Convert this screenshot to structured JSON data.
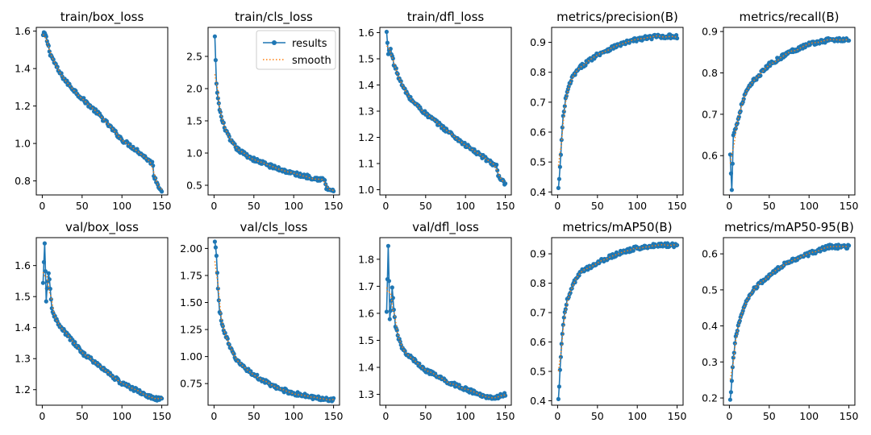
{
  "figure": {
    "legend": {
      "results_label": "results",
      "smooth_label": "smooth",
      "placement": "top-right of train/cls_loss"
    },
    "colors": {
      "results": "#1f77b4",
      "smooth": "#ff7f0e"
    }
  },
  "chart_data": [
    {
      "type": "line",
      "title": "train/box_loss",
      "x_range": [
        0,
        150
      ],
      "xticks": [
        0,
        50,
        100,
        150
      ],
      "ylim": [
        0.725,
        1.62
      ],
      "yticks": [
        0.8,
        1.0,
        1.2,
        1.4,
        1.6
      ],
      "ytick_labels": [
        "0.8",
        "1.0",
        "1.2",
        "1.4",
        "1.6"
      ],
      "series": [
        {
          "name": "results",
          "points": [
            [
              0,
              1.57
            ],
            [
              3,
              1.59
            ],
            [
              6,
              1.55
            ],
            [
              10,
              1.48
            ],
            [
              20,
              1.39
            ],
            [
              30,
              1.33
            ],
            [
              50,
              1.24
            ],
            [
              70,
              1.16
            ],
            [
              100,
              1.02
            ],
            [
              120,
              0.96
            ],
            [
              139,
              0.89
            ],
            [
              140,
              0.83
            ],
            [
              145,
              0.78
            ],
            [
              150,
              0.75
            ]
          ]
        }
      ]
    },
    {
      "type": "line",
      "title": "train/cls_loss",
      "x_range": [
        0,
        150
      ],
      "xticks": [
        0,
        50,
        100,
        150
      ],
      "ylim": [
        0.35,
        2.95
      ],
      "yticks": [
        0.5,
        1.0,
        1.5,
        2.0,
        2.5
      ],
      "ytick_labels": [
        "0.5",
        "1.0",
        "1.5",
        "2.0",
        "2.5"
      ],
      "series": [
        {
          "name": "results",
          "points": [
            [
              1,
              2.8
            ],
            [
              3,
              2.05
            ],
            [
              6,
              1.75
            ],
            [
              10,
              1.5
            ],
            [
              20,
              1.2
            ],
            [
              30,
              1.05
            ],
            [
              50,
              0.9
            ],
            [
              75,
              0.78
            ],
            [
              100,
              0.68
            ],
            [
              139,
              0.58
            ],
            [
              141,
              0.45
            ],
            [
              150,
              0.41
            ]
          ]
        }
      ]
    },
    {
      "type": "line",
      "title": "train/dfl_loss",
      "x_range": [
        0,
        150
      ],
      "xticks": [
        0,
        50,
        100,
        150
      ],
      "ylim": [
        0.98,
        1.62
      ],
      "yticks": [
        1.0,
        1.1,
        1.2,
        1.3,
        1.4,
        1.5,
        1.6
      ],
      "ytick_labels": [
        "1.0",
        "1.1",
        "1.2",
        "1.3",
        "1.4",
        "1.5",
        "1.6"
      ],
      "series": [
        {
          "name": "results",
          "points": [
            [
              1,
              1.6
            ],
            [
              3,
              1.52
            ],
            [
              6,
              1.54
            ],
            [
              10,
              1.48
            ],
            [
              20,
              1.4
            ],
            [
              30,
              1.35
            ],
            [
              50,
              1.29
            ],
            [
              75,
              1.23
            ],
            [
              100,
              1.17
            ],
            [
              139,
              1.09
            ],
            [
              141,
              1.05
            ],
            [
              150,
              1.02
            ]
          ]
        }
      ]
    },
    {
      "type": "line",
      "title": "metrics/precision(B)",
      "x_range": [
        0,
        150
      ],
      "xticks": [
        0,
        50,
        100,
        150
      ],
      "ylim": [
        0.39,
        0.95
      ],
      "yticks": [
        0.4,
        0.5,
        0.6,
        0.7,
        0.8,
        0.9
      ],
      "ytick_labels": [
        "0.4",
        "0.5",
        "0.6",
        "0.7",
        "0.8",
        "0.9"
      ],
      "series": [
        {
          "name": "results",
          "points": [
            [
              1,
              0.41
            ],
            [
              3,
              0.48
            ],
            [
              5,
              0.57
            ],
            [
              7,
              0.65
            ],
            [
              10,
              0.71
            ],
            [
              15,
              0.76
            ],
            [
              20,
              0.79
            ],
            [
              30,
              0.82
            ],
            [
              50,
              0.86
            ],
            [
              75,
              0.89
            ],
            [
              100,
              0.91
            ],
            [
              125,
              0.92
            ],
            [
              150,
              0.92
            ]
          ]
        }
      ]
    },
    {
      "type": "line",
      "title": "metrics/recall(B)",
      "x_range": [
        0,
        150
      ],
      "xticks": [
        0,
        50,
        100,
        150
      ],
      "ylim": [
        0.505,
        0.91
      ],
      "yticks": [
        0.6,
        0.7,
        0.8,
        0.9
      ],
      "ytick_labels": [
        "0.6",
        "0.7",
        "0.8",
        "0.9"
      ],
      "series": [
        {
          "name": "results",
          "points": [
            [
              1,
              0.6
            ],
            [
              3,
              0.52
            ],
            [
              5,
              0.65
            ],
            [
              10,
              0.68
            ],
            [
              15,
              0.72
            ],
            [
              20,
              0.75
            ],
            [
              30,
              0.78
            ],
            [
              50,
              0.82
            ],
            [
              75,
              0.85
            ],
            [
              100,
              0.87
            ],
            [
              125,
              0.88
            ],
            [
              150,
              0.88
            ]
          ]
        }
      ]
    },
    {
      "type": "line",
      "title": "val/box_loss",
      "x_range": [
        0,
        150
      ],
      "xticks": [
        0,
        50,
        100,
        150
      ],
      "ylim": [
        1.15,
        1.69
      ],
      "yticks": [
        1.2,
        1.3,
        1.4,
        1.5,
        1.6
      ],
      "ytick_labels": [
        "1.2",
        "1.3",
        "1.4",
        "1.5",
        "1.6"
      ],
      "series": [
        {
          "name": "results",
          "points": [
            [
              1,
              1.54
            ],
            [
              3,
              1.67
            ],
            [
              5,
              1.49
            ],
            [
              8,
              1.58
            ],
            [
              12,
              1.46
            ],
            [
              20,
              1.41
            ],
            [
              30,
              1.38
            ],
            [
              50,
              1.32
            ],
            [
              75,
              1.27
            ],
            [
              100,
              1.22
            ],
            [
              125,
              1.19
            ],
            [
              140,
              1.17
            ],
            [
              150,
              1.17
            ]
          ]
        }
      ]
    },
    {
      "type": "line",
      "title": "val/cls_loss",
      "x_range": [
        0,
        150
      ],
      "xticks": [
        0,
        50,
        100,
        150
      ],
      "ylim": [
        0.55,
        2.1
      ],
      "yticks": [
        0.75,
        1.0,
        1.25,
        1.5,
        1.75,
        2.0
      ],
      "ytick_labels": [
        "0.75",
        "1.00",
        "1.25",
        "1.50",
        "1.75",
        "2.00"
      ],
      "series": [
        {
          "name": "results",
          "points": [
            [
              1,
              2.05
            ],
            [
              3,
              1.95
            ],
            [
              5,
              1.62
            ],
            [
              7,
              1.42
            ],
            [
              10,
              1.3
            ],
            [
              20,
              1.08
            ],
            [
              30,
              0.95
            ],
            [
              50,
              0.83
            ],
            [
              75,
              0.72
            ],
            [
              100,
              0.66
            ],
            [
              125,
              0.62
            ],
            [
              150,
              0.6
            ]
          ]
        }
      ]
    },
    {
      "type": "line",
      "title": "val/dfl_loss",
      "x_range": [
        0,
        150
      ],
      "xticks": [
        0,
        50,
        100,
        150
      ],
      "ylim": [
        1.26,
        1.88
      ],
      "yticks": [
        1.3,
        1.4,
        1.5,
        1.6,
        1.7,
        1.8
      ],
      "ytick_labels": [
        "1.3",
        "1.4",
        "1.5",
        "1.6",
        "1.7",
        "1.8"
      ],
      "series": [
        {
          "name": "results",
          "points": [
            [
              1,
              1.6
            ],
            [
              3,
              1.85
            ],
            [
              5,
              1.58
            ],
            [
              8,
              1.69
            ],
            [
              12,
              1.55
            ],
            [
              20,
              1.47
            ],
            [
              30,
              1.44
            ],
            [
              50,
              1.39
            ],
            [
              75,
              1.35
            ],
            [
              100,
              1.32
            ],
            [
              125,
              1.29
            ],
            [
              140,
              1.29
            ],
            [
              150,
              1.3
            ]
          ]
        }
      ]
    },
    {
      "type": "line",
      "title": "metrics/mAP50(B)",
      "x_range": [
        0,
        150
      ],
      "xticks": [
        0,
        50,
        100,
        150
      ],
      "ylim": [
        0.385,
        0.955
      ],
      "yticks": [
        0.4,
        0.5,
        0.6,
        0.7,
        0.8,
        0.9
      ],
      "ytick_labels": [
        "0.4",
        "0.5",
        "0.6",
        "0.7",
        "0.8",
        "0.9"
      ],
      "series": [
        {
          "name": "results",
          "points": [
            [
              1,
              0.4
            ],
            [
              3,
              0.5
            ],
            [
              5,
              0.6
            ],
            [
              8,
              0.68
            ],
            [
              12,
              0.74
            ],
            [
              20,
              0.8
            ],
            [
              30,
              0.84
            ],
            [
              50,
              0.87
            ],
            [
              75,
              0.9
            ],
            [
              100,
              0.92
            ],
            [
              125,
              0.93
            ],
            [
              150,
              0.93
            ]
          ]
        }
      ]
    },
    {
      "type": "line",
      "title": "metrics/mAP50-95(B)",
      "x_range": [
        0,
        150
      ],
      "xticks": [
        0,
        50,
        100,
        150
      ],
      "ylim": [
        0.18,
        0.645
      ],
      "yticks": [
        0.2,
        0.3,
        0.4,
        0.5,
        0.6
      ],
      "ytick_labels": [
        "0.2",
        "0.3",
        "0.4",
        "0.5",
        "0.6"
      ],
      "series": [
        {
          "name": "results",
          "points": [
            [
              1,
              0.19
            ],
            [
              3,
              0.25
            ],
            [
              5,
              0.31
            ],
            [
              8,
              0.37
            ],
            [
              12,
              0.41
            ],
            [
              20,
              0.46
            ],
            [
              30,
              0.5
            ],
            [
              50,
              0.54
            ],
            [
              75,
              0.58
            ],
            [
              100,
              0.6
            ],
            [
              125,
              0.62
            ],
            [
              150,
              0.62
            ]
          ]
        }
      ]
    }
  ]
}
